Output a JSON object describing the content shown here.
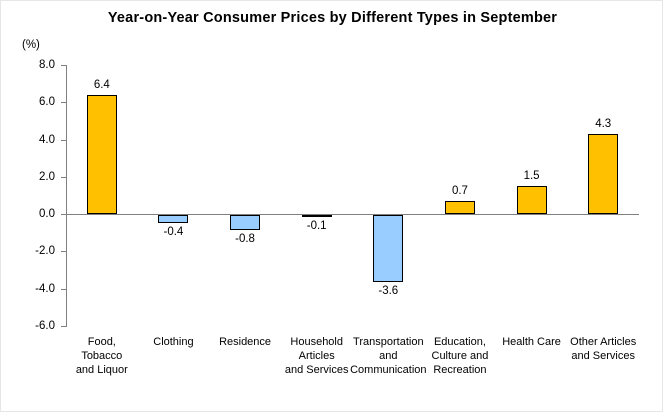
{
  "chart_data": {
    "type": "bar",
    "title": "Year-on-Year Consumer Prices by Different Types in September",
    "unit_label": "(%)",
    "xlabel": "",
    "ylabel": "(%)",
    "categories": [
      "Food, Tobacco and Liquor",
      "Clothing",
      "Residence",
      "Household Articles and Services",
      "Transportation and Communication",
      "Education, Culture and Recreation",
      "Health Care",
      "Other Articles and Services"
    ],
    "category_lines": [
      [
        "Food,",
        "Tobacco",
        "and Liquor"
      ],
      [
        "Clothing"
      ],
      [
        "Residence"
      ],
      [
        "Household",
        "Articles",
        "and Services"
      ],
      [
        "Transportation",
        "and",
        "Communication"
      ],
      [
        "Education,",
        "Culture and",
        "Recreation"
      ],
      [
        "Health Care"
      ],
      [
        "Other Articles",
        "and Services"
      ]
    ],
    "values": [
      6.4,
      -0.4,
      -0.8,
      -0.1,
      -3.6,
      0.7,
      1.5,
      4.3
    ],
    "value_labels": [
      "6.4",
      "-0.4",
      "-0.8",
      "-0.1",
      "-3.6",
      "0.7",
      "1.5",
      "4.3"
    ],
    "ylim": [
      -6,
      8
    ],
    "yticks": [
      8,
      6,
      4,
      2,
      0,
      -2,
      -4,
      -6
    ],
    "ytick_labels": [
      "8.0",
      "6.0",
      "4.0",
      "2.0",
      "0.0",
      "-2.0",
      "-4.0",
      "-6.0"
    ],
    "positive_color": "#FFC000",
    "negative_color": "#99CCFF",
    "bar_border_color": "#000000",
    "axis_color": "#808080",
    "grid": false,
    "legend_position": "none"
  }
}
